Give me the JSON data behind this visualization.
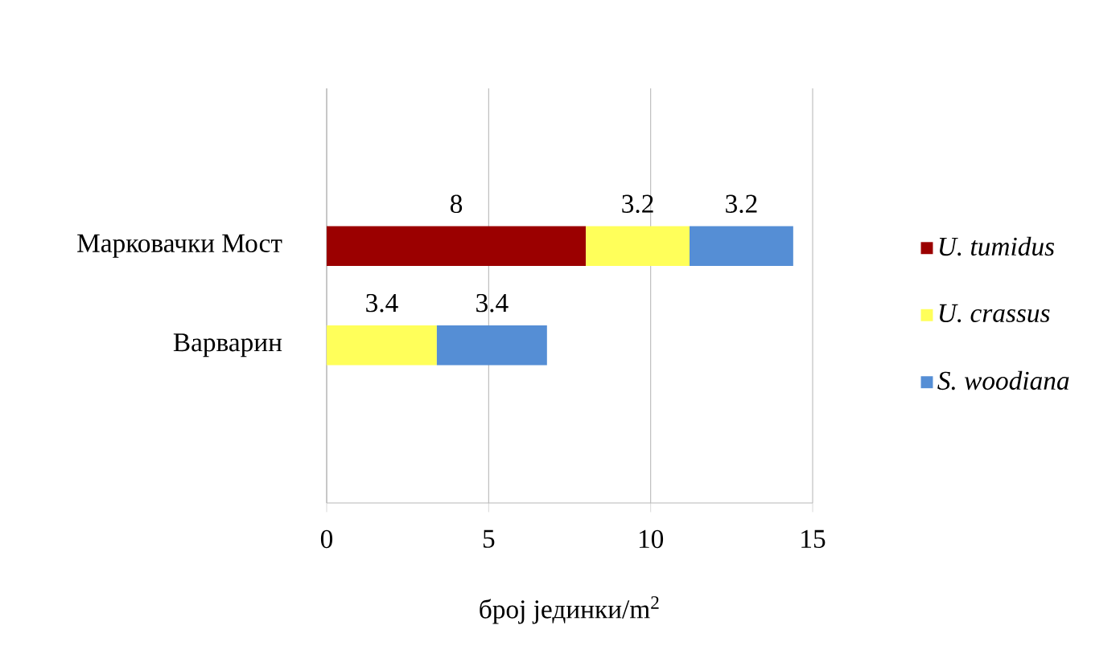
{
  "chart_data": {
    "type": "bar",
    "orientation": "horizontal",
    "stacked": true,
    "categories": [
      "Марковачки Мост",
      "Варварин"
    ],
    "series": [
      {
        "name": "U. tumidus",
        "color": "#9b0000",
        "values": [
          8,
          null
        ]
      },
      {
        "name": "U. crassus",
        "color": "#ffff5a",
        "values": [
          3.2,
          3.4
        ]
      },
      {
        "name": "S. woodiana",
        "color": "#558ed5",
        "values": [
          3.2,
          3.4
        ]
      }
    ],
    "xlabel": "број јединки/m$^{2}$",
    "xlim": [
      0,
      15
    ],
    "xticks": [
      0,
      5,
      10,
      15
    ],
    "grid": "x",
    "legend": "right",
    "data_labels": true
  }
}
